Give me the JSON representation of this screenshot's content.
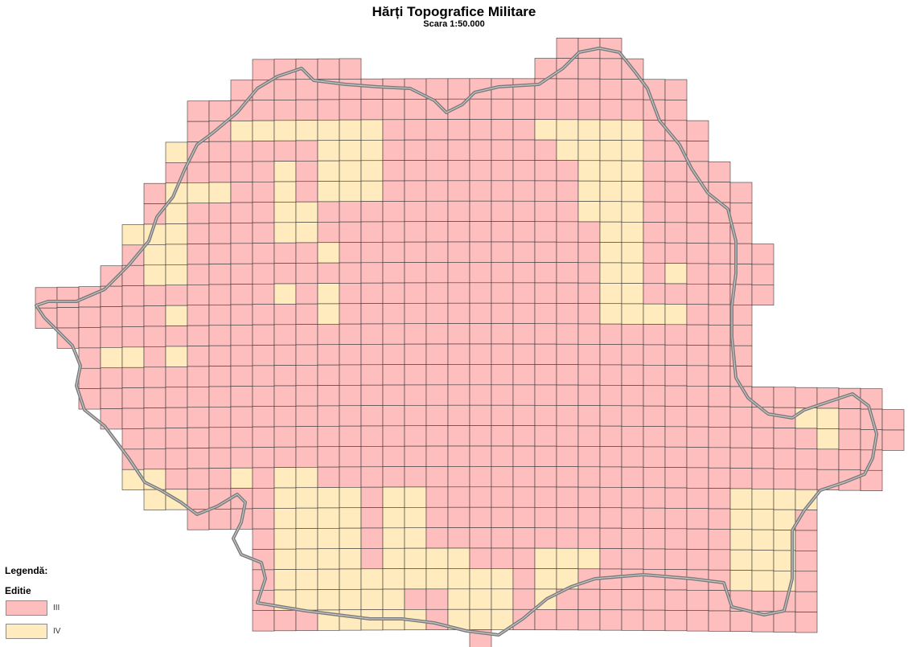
{
  "title": "Hărți Topografice Militare",
  "subtitle": "Scara 1:50.000",
  "legend": {
    "title": "Legendă:",
    "field": "Editie",
    "items": [
      {
        "label": "III",
        "color": "#ffbebe"
      },
      {
        "label": "IV",
        "color": "#ffebbe"
      }
    ]
  },
  "sheet_edition_rows": [
    [
      [
        24,
        26,
        "III"
      ]
    ],
    [
      [
        10,
        14,
        "III"
      ],
      [
        23,
        27,
        "III"
      ]
    ],
    [
      [
        9,
        29,
        "III"
      ]
    ],
    [
      [
        7,
        29,
        "III"
      ]
    ],
    [
      [
        7,
        8,
        "III"
      ],
      [
        9,
        12,
        "IV"
      ],
      [
        13,
        15,
        "IV"
      ],
      [
        16,
        22,
        "III"
      ],
      [
        23,
        27,
        "IV"
      ],
      [
        28,
        30,
        "III"
      ]
    ],
    [
      [
        6,
        6,
        "IV"
      ],
      [
        7,
        12,
        "III"
      ],
      [
        13,
        15,
        "IV"
      ],
      [
        16,
        23,
        "III"
      ],
      [
        24,
        27,
        "IV"
      ],
      [
        28,
        30,
        "III"
      ]
    ],
    [
      [
        6,
        10,
        "III"
      ],
      [
        11,
        11,
        "IV"
      ],
      [
        12,
        12,
        "III"
      ],
      [
        13,
        15,
        "IV"
      ],
      [
        16,
        24,
        "III"
      ],
      [
        25,
        27,
        "IV"
      ],
      [
        28,
        31,
        "III"
      ]
    ],
    [
      [
        5,
        5,
        "III"
      ],
      [
        6,
        8,
        "IV"
      ],
      [
        9,
        10,
        "III"
      ],
      [
        11,
        11,
        "IV"
      ],
      [
        12,
        12,
        "III"
      ],
      [
        13,
        15,
        "IV"
      ],
      [
        16,
        24,
        "III"
      ],
      [
        25,
        27,
        "IV"
      ],
      [
        28,
        32,
        "III"
      ]
    ],
    [
      [
        5,
        5,
        "III"
      ],
      [
        6,
        6,
        "IV"
      ],
      [
        7,
        10,
        "III"
      ],
      [
        11,
        12,
        "IV"
      ],
      [
        13,
        24,
        "III"
      ],
      [
        25,
        27,
        "IV"
      ],
      [
        28,
        32,
        "III"
      ]
    ],
    [
      [
        4,
        6,
        "IV"
      ],
      [
        7,
        10,
        "III"
      ],
      [
        11,
        12,
        "IV"
      ],
      [
        13,
        25,
        "III"
      ],
      [
        26,
        27,
        "IV"
      ],
      [
        28,
        32,
        "III"
      ]
    ],
    [
      [
        4,
        4,
        "III"
      ],
      [
        5,
        6,
        "IV"
      ],
      [
        7,
        12,
        "III"
      ],
      [
        13,
        13,
        "IV"
      ],
      [
        14,
        25,
        "III"
      ],
      [
        26,
        27,
        "IV"
      ],
      [
        28,
        33,
        "III"
      ]
    ],
    [
      [
        3,
        4,
        "III"
      ],
      [
        5,
        6,
        "IV"
      ],
      [
        7,
        25,
        "III"
      ],
      [
        26,
        27,
        "IV"
      ],
      [
        28,
        28,
        "III"
      ],
      [
        29,
        29,
        "IV"
      ],
      [
        30,
        33,
        "III"
      ]
    ],
    [
      [
        0,
        10,
        "III"
      ],
      [
        11,
        11,
        "IV"
      ],
      [
        12,
        12,
        "III"
      ],
      [
        13,
        13,
        "IV"
      ],
      [
        14,
        25,
        "III"
      ],
      [
        26,
        27,
        "IV"
      ],
      [
        28,
        33,
        "III"
      ]
    ],
    [
      [
        0,
        5,
        "III"
      ],
      [
        6,
        6,
        "IV"
      ],
      [
        7,
        12,
        "III"
      ],
      [
        13,
        13,
        "IV"
      ],
      [
        14,
        25,
        "III"
      ],
      [
        26,
        29,
        "IV"
      ],
      [
        30,
        32,
        "III"
      ]
    ],
    [
      [
        1,
        32,
        "III"
      ]
    ],
    [
      [
        2,
        2,
        "III"
      ],
      [
        3,
        4,
        "IV"
      ],
      [
        5,
        5,
        "III"
      ],
      [
        6,
        6,
        "IV"
      ],
      [
        7,
        32,
        "III"
      ]
    ],
    [
      [
        2,
        32,
        "III"
      ]
    ],
    [
      [
        2,
        38,
        "III"
      ]
    ],
    [
      [
        3,
        34,
        "III"
      ],
      [
        35,
        36,
        "IV"
      ],
      [
        37,
        39,
        "III"
      ]
    ],
    [
      [
        4,
        35,
        "III"
      ],
      [
        36,
        36,
        "IV"
      ],
      [
        37,
        39,
        "III"
      ]
    ],
    [
      [
        4,
        38,
        "III"
      ]
    ],
    [
      [
        4,
        5,
        "IV"
      ],
      [
        6,
        8,
        "III"
      ],
      [
        9,
        9,
        "IV"
      ],
      [
        10,
        10,
        "III"
      ],
      [
        11,
        12,
        "IV"
      ],
      [
        13,
        38,
        "III"
      ]
    ],
    [
      [
        5,
        6,
        "IV"
      ],
      [
        7,
        10,
        "III"
      ],
      [
        11,
        14,
        "IV"
      ],
      [
        15,
        15,
        "III"
      ],
      [
        16,
        17,
        "IV"
      ],
      [
        18,
        31,
        "III"
      ],
      [
        32,
        35,
        "IV"
      ]
    ],
    [
      [
        7,
        10,
        "III"
      ],
      [
        11,
        14,
        "IV"
      ],
      [
        15,
        15,
        "III"
      ],
      [
        16,
        17,
        "IV"
      ],
      [
        18,
        31,
        "III"
      ],
      [
        32,
        34,
        "IV"
      ],
      [
        35,
        35,
        "III"
      ]
    ],
    [
      [
        10,
        10,
        "III"
      ],
      [
        11,
        14,
        "IV"
      ],
      [
        15,
        15,
        "III"
      ],
      [
        16,
        17,
        "IV"
      ],
      [
        18,
        31,
        "III"
      ],
      [
        32,
        34,
        "IV"
      ],
      [
        35,
        35,
        "III"
      ]
    ],
    [
      [
        10,
        10,
        "III"
      ],
      [
        11,
        14,
        "IV"
      ],
      [
        15,
        15,
        "III"
      ],
      [
        16,
        19,
        "IV"
      ],
      [
        20,
        22,
        "III"
      ],
      [
        23,
        25,
        "IV"
      ],
      [
        26,
        31,
        "III"
      ],
      [
        32,
        34,
        "IV"
      ],
      [
        35,
        35,
        "III"
      ]
    ],
    [
      [
        10,
        10,
        "III"
      ],
      [
        11,
        21,
        "IV"
      ],
      [
        22,
        22,
        "III"
      ],
      [
        23,
        24,
        "IV"
      ],
      [
        25,
        31,
        "III"
      ],
      [
        32,
        34,
        "IV"
      ],
      [
        35,
        35,
        "III"
      ]
    ],
    [
      [
        10,
        10,
        "III"
      ],
      [
        11,
        16,
        "IV"
      ],
      [
        17,
        18,
        "III"
      ],
      [
        19,
        21,
        "IV"
      ],
      [
        22,
        22,
        "III"
      ],
      [
        23,
        23,
        "IV"
      ],
      [
        24,
        35,
        "III"
      ]
    ],
    [
      [
        10,
        12,
        "III"
      ],
      [
        13,
        17,
        "IV"
      ],
      [
        18,
        18,
        "III"
      ],
      [
        19,
        21,
        "IV"
      ],
      [
        22,
        35,
        "III"
      ]
    ],
    [
      [
        20,
        20,
        "III"
      ]
    ]
  ]
}
